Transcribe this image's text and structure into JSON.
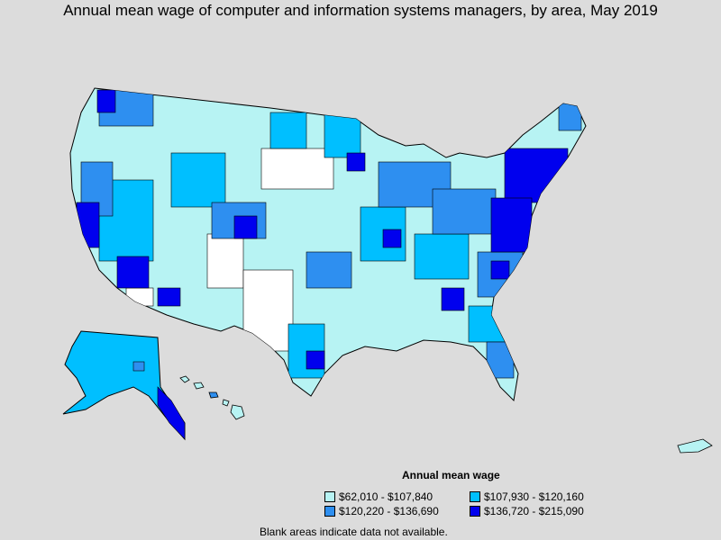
{
  "title": "Annual mean wage of computer and information systems managers, by area, May 2019",
  "legend": {
    "title": "Annual mean wage",
    "items": [
      {
        "label": "$62,010 - $107,840",
        "color": "#b7f3f3"
      },
      {
        "label": "$107,930 - $120,160",
        "color": "#00bfff"
      },
      {
        "label": "$120,220 - $136,690",
        "color": "#2e8ff0"
      },
      {
        "label": "$136,720 - $215,090",
        "color": "#0000ee"
      }
    ]
  },
  "note": "Blank areas indicate data not available."
}
